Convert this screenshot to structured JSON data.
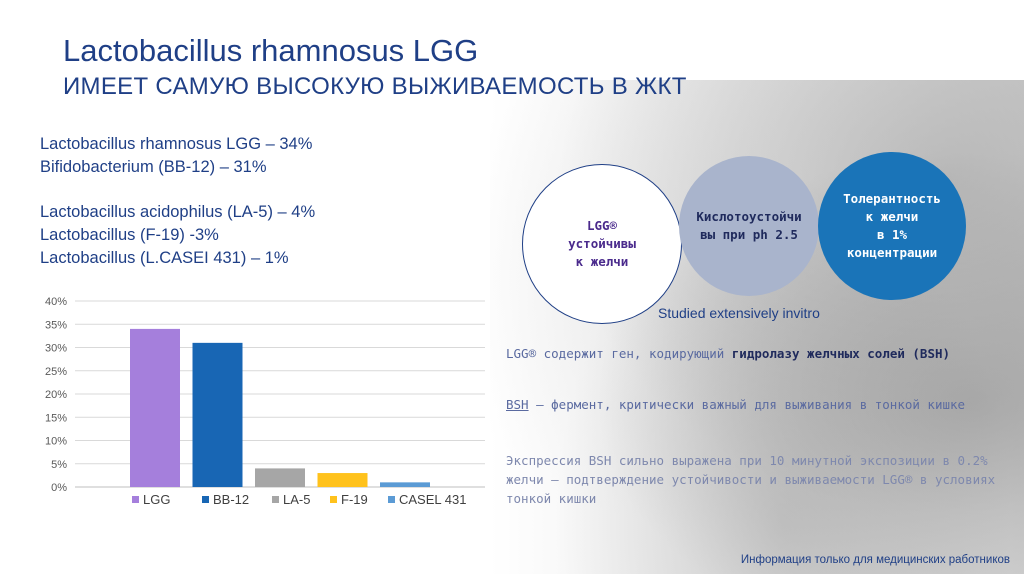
{
  "title": {
    "line1": "Lactobacillus rhamnosus LGG",
    "line2": "ИМЕЕТ САМУЮ ВЫСОКУЮ ВЫЖИВАЕМОСТЬ В ЖКТ"
  },
  "stats": [
    "Lactobacillus rhamnosus LGG – 34%",
    "Bifidobacterium (BB-12) – 31%",
    "Lactobacillus acidophilus (LA-5) – 4%",
    "Lactobacillus (F-19) -3%",
    "Lactobacillus (L.CASEI 431) – 1%"
  ],
  "chart_data": {
    "type": "bar",
    "categories": [
      "LGG",
      "BB-12",
      "LA-5",
      "F-19",
      "CASEL 431"
    ],
    "values": [
      34,
      31,
      4,
      3,
      1
    ],
    "colors": [
      "#a57fdc",
      "#1866b4",
      "#a6a6a6",
      "#ffc21c",
      "#5b9bd5"
    ],
    "ylim": [
      0,
      40
    ],
    "yticks": [
      "0%",
      "5%",
      "10%",
      "15%",
      "20%",
      "25%",
      "30%",
      "35%",
      "40%"
    ],
    "grid": true,
    "legend": "bottom"
  },
  "circles": {
    "c1": [
      "LGG®",
      "устойчивы",
      "к желчи"
    ],
    "c2": [
      "Кислотоустойчи",
      "вы при ph 2.5"
    ],
    "c3": [
      "Толерантность",
      "к желчи",
      "в 1%",
      "концентрации"
    ]
  },
  "studied": "Studied extensively invitro",
  "paragraphs": {
    "p1_a": "LGG® содержит ген, кодирующий ",
    "p1_b": "гидролазу желчных солей (BSH)",
    "p2_a": "BSH",
    "p2_b": " – фермент, критически  важный для выживания в тонкой кишке",
    "p3": "Экспрессия BSH сильно выражена при 10 минутной экспозиции в 0.2% желчи – подтверждение устойчивости и выживаемости LGG® в условиях тонкой кишки"
  },
  "footer": "Информация только для медицинских работников"
}
